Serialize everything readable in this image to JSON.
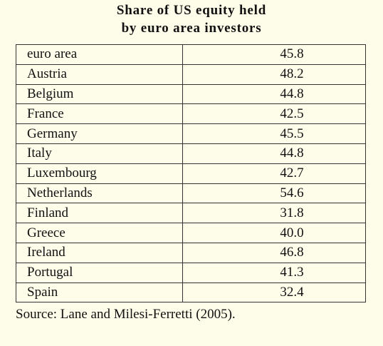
{
  "title": {
    "line1": "Share of US equity held",
    "line2": "by euro area investors"
  },
  "rows": [
    {
      "name": "euro area",
      "value": "45.8"
    },
    {
      "name": "Austria",
      "value": "48.2"
    },
    {
      "name": "Belgium",
      "value": "44.8"
    },
    {
      "name": "France",
      "value": "42.5"
    },
    {
      "name": "Germany",
      "value": "45.5"
    },
    {
      "name": "Italy",
      "value": "44.8"
    },
    {
      "name": "Luxembourg",
      "value": "42.7"
    },
    {
      "name": "Netherlands",
      "value": "54.6"
    },
    {
      "name": "Finland",
      "value": "31.8"
    },
    {
      "name": "Greece",
      "value": "40.0"
    },
    {
      "name": "Ireland",
      "value": "46.8"
    },
    {
      "name": "Portugal",
      "value": "41.3"
    },
    {
      "name": "Spain",
      "value": "32.4"
    }
  ],
  "source": "Source: Lane and Milesi-Ferretti (2005)."
}
